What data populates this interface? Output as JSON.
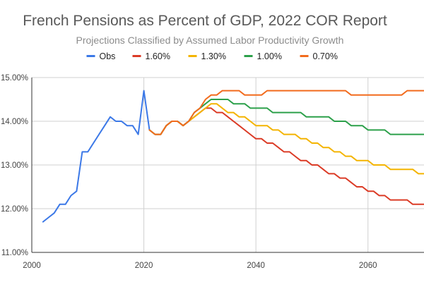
{
  "chart_data": {
    "type": "line",
    "title": "French Pensions as Percent of GDP, 2022 COR Report",
    "subtitle": "Projections Classified by Assumed Labor Productivity Growth",
    "xlabel": "",
    "ylabel": "",
    "xlim": [
      2000,
      2070
    ],
    "ylim": [
      11,
      15
    ],
    "x_ticks": [
      2000,
      2020,
      2040,
      2060
    ],
    "x_tick_labels": [
      "2000",
      "2020",
      "2040",
      "2060"
    ],
    "y_ticks": [
      11,
      12,
      13,
      14,
      15
    ],
    "y_tick_labels": [
      "11.00%",
      "12.00%",
      "13.00%",
      "14.00%",
      "15.00%"
    ],
    "grid": true,
    "legend_position": "top",
    "step_lines": true,
    "series": [
      {
        "name": "Obs",
        "color": "#3b78e7",
        "points": [
          [
            2002,
            11.7
          ],
          [
            2003,
            11.8
          ],
          [
            2004,
            11.9
          ],
          [
            2005,
            12.1
          ],
          [
            2006,
            12.1
          ],
          [
            2007,
            12.3
          ],
          [
            2008,
            12.4
          ],
          [
            2009,
            13.3
          ],
          [
            2010,
            13.3
          ],
          [
            2011,
            13.5
          ],
          [
            2012,
            13.7
          ],
          [
            2013,
            13.9
          ],
          [
            2014,
            14.1
          ],
          [
            2015,
            14.0
          ],
          [
            2016,
            14.0
          ],
          [
            2017,
            13.9
          ],
          [
            2018,
            13.9
          ],
          [
            2019,
            13.7
          ],
          [
            2020,
            14.7
          ],
          [
            2021,
            13.8
          ]
        ]
      },
      {
        "name": "1.60%",
        "color": "#db3b26",
        "points": [
          [
            2021,
            13.8
          ],
          [
            2022,
            13.7
          ],
          [
            2023,
            13.7
          ],
          [
            2024,
            13.9
          ],
          [
            2025,
            14.0
          ],
          [
            2026,
            14.0
          ],
          [
            2027,
            13.9
          ],
          [
            2028,
            14.0
          ],
          [
            2029,
            14.1
          ],
          [
            2030,
            14.2
          ],
          [
            2031,
            14.3
          ],
          [
            2032,
            14.3
          ],
          [
            2033,
            14.2
          ],
          [
            2034,
            14.2
          ],
          [
            2035,
            14.1
          ],
          [
            2036,
            14.0
          ],
          [
            2037,
            13.9
          ],
          [
            2038,
            13.8
          ],
          [
            2039,
            13.7
          ],
          [
            2040,
            13.6
          ],
          [
            2041,
            13.6
          ],
          [
            2042,
            13.5
          ],
          [
            2043,
            13.5
          ],
          [
            2044,
            13.4
          ],
          [
            2045,
            13.3
          ],
          [
            2046,
            13.3
          ],
          [
            2047,
            13.2
          ],
          [
            2048,
            13.1
          ],
          [
            2049,
            13.1
          ],
          [
            2050,
            13.0
          ],
          [
            2051,
            13.0
          ],
          [
            2052,
            12.9
          ],
          [
            2053,
            12.8
          ],
          [
            2054,
            12.8
          ],
          [
            2055,
            12.7
          ],
          [
            2056,
            12.7
          ],
          [
            2057,
            12.6
          ],
          [
            2058,
            12.5
          ],
          [
            2059,
            12.5
          ],
          [
            2060,
            12.4
          ],
          [
            2061,
            12.4
          ],
          [
            2062,
            12.3
          ],
          [
            2063,
            12.3
          ],
          [
            2064,
            12.2
          ],
          [
            2065,
            12.2
          ],
          [
            2066,
            12.2
          ],
          [
            2067,
            12.2
          ],
          [
            2068,
            12.1
          ],
          [
            2069,
            12.1
          ],
          [
            2070,
            12.1
          ]
        ]
      },
      {
        "name": "1.30%",
        "color": "#f4b400",
        "points": [
          [
            2021,
            13.8
          ],
          [
            2022,
            13.7
          ],
          [
            2023,
            13.7
          ],
          [
            2024,
            13.9
          ],
          [
            2025,
            14.0
          ],
          [
            2026,
            14.0
          ],
          [
            2027,
            13.9
          ],
          [
            2028,
            14.0
          ],
          [
            2029,
            14.1
          ],
          [
            2030,
            14.2
          ],
          [
            2031,
            14.3
          ],
          [
            2032,
            14.4
          ],
          [
            2033,
            14.4
          ],
          [
            2034,
            14.3
          ],
          [
            2035,
            14.2
          ],
          [
            2036,
            14.2
          ],
          [
            2037,
            14.1
          ],
          [
            2038,
            14.1
          ],
          [
            2039,
            14.0
          ],
          [
            2040,
            13.9
          ],
          [
            2041,
            13.9
          ],
          [
            2042,
            13.9
          ],
          [
            2043,
            13.8
          ],
          [
            2044,
            13.8
          ],
          [
            2045,
            13.7
          ],
          [
            2046,
            13.7
          ],
          [
            2047,
            13.7
          ],
          [
            2048,
            13.6
          ],
          [
            2049,
            13.6
          ],
          [
            2050,
            13.5
          ],
          [
            2051,
            13.5
          ],
          [
            2052,
            13.4
          ],
          [
            2053,
            13.4
          ],
          [
            2054,
            13.3
          ],
          [
            2055,
            13.3
          ],
          [
            2056,
            13.2
          ],
          [
            2057,
            13.2
          ],
          [
            2058,
            13.1
          ],
          [
            2059,
            13.1
          ],
          [
            2060,
            13.1
          ],
          [
            2061,
            13.0
          ],
          [
            2062,
            13.0
          ],
          [
            2063,
            13.0
          ],
          [
            2064,
            12.9
          ],
          [
            2065,
            12.9
          ],
          [
            2066,
            12.9
          ],
          [
            2067,
            12.9
          ],
          [
            2068,
            12.9
          ],
          [
            2069,
            12.8
          ],
          [
            2070,
            12.8
          ]
        ]
      },
      {
        "name": "1.00%",
        "color": "#2ca04a",
        "points": [
          [
            2021,
            13.8
          ],
          [
            2022,
            13.7
          ],
          [
            2023,
            13.7
          ],
          [
            2024,
            13.9
          ],
          [
            2025,
            14.0
          ],
          [
            2026,
            14.0
          ],
          [
            2027,
            13.9
          ],
          [
            2028,
            14.0
          ],
          [
            2029,
            14.2
          ],
          [
            2030,
            14.3
          ],
          [
            2031,
            14.4
          ],
          [
            2032,
            14.5
          ],
          [
            2033,
            14.5
          ],
          [
            2034,
            14.5
          ],
          [
            2035,
            14.5
          ],
          [
            2036,
            14.4
          ],
          [
            2037,
            14.4
          ],
          [
            2038,
            14.4
          ],
          [
            2039,
            14.3
          ],
          [
            2040,
            14.3
          ],
          [
            2041,
            14.3
          ],
          [
            2042,
            14.3
          ],
          [
            2043,
            14.2
          ],
          [
            2044,
            14.2
          ],
          [
            2045,
            14.2
          ],
          [
            2046,
            14.2
          ],
          [
            2047,
            14.2
          ],
          [
            2048,
            14.2
          ],
          [
            2049,
            14.1
          ],
          [
            2050,
            14.1
          ],
          [
            2051,
            14.1
          ],
          [
            2052,
            14.1
          ],
          [
            2053,
            14.1
          ],
          [
            2054,
            14.0
          ],
          [
            2055,
            14.0
          ],
          [
            2056,
            14.0
          ],
          [
            2057,
            13.9
          ],
          [
            2058,
            13.9
          ],
          [
            2059,
            13.9
          ],
          [
            2060,
            13.8
          ],
          [
            2061,
            13.8
          ],
          [
            2062,
            13.8
          ],
          [
            2063,
            13.8
          ],
          [
            2064,
            13.7
          ],
          [
            2065,
            13.7
          ],
          [
            2066,
            13.7
          ],
          [
            2067,
            13.7
          ],
          [
            2068,
            13.7
          ],
          [
            2069,
            13.7
          ],
          [
            2070,
            13.7
          ]
        ]
      },
      {
        "name": "0.70%",
        "color": "#f26b1d",
        "points": [
          [
            2021,
            13.8
          ],
          [
            2022,
            13.7
          ],
          [
            2023,
            13.7
          ],
          [
            2024,
            13.9
          ],
          [
            2025,
            14.0
          ],
          [
            2026,
            14.0
          ],
          [
            2027,
            13.9
          ],
          [
            2028,
            14.0
          ],
          [
            2029,
            14.2
          ],
          [
            2030,
            14.3
          ],
          [
            2031,
            14.5
          ],
          [
            2032,
            14.6
          ],
          [
            2033,
            14.6
          ],
          [
            2034,
            14.7
          ],
          [
            2035,
            14.7
          ],
          [
            2036,
            14.7
          ],
          [
            2037,
            14.7
          ],
          [
            2038,
            14.6
          ],
          [
            2039,
            14.6
          ],
          [
            2040,
            14.6
          ],
          [
            2041,
            14.6
          ],
          [
            2042,
            14.7
          ],
          [
            2043,
            14.7
          ],
          [
            2044,
            14.7
          ],
          [
            2045,
            14.7
          ],
          [
            2046,
            14.7
          ],
          [
            2047,
            14.7
          ],
          [
            2048,
            14.7
          ],
          [
            2049,
            14.7
          ],
          [
            2050,
            14.7
          ],
          [
            2051,
            14.7
          ],
          [
            2052,
            14.7
          ],
          [
            2053,
            14.7
          ],
          [
            2054,
            14.7
          ],
          [
            2055,
            14.7
          ],
          [
            2056,
            14.7
          ],
          [
            2057,
            14.6
          ],
          [
            2058,
            14.6
          ],
          [
            2059,
            14.6
          ],
          [
            2060,
            14.6
          ],
          [
            2061,
            14.6
          ],
          [
            2062,
            14.6
          ],
          [
            2063,
            14.6
          ],
          [
            2064,
            14.6
          ],
          [
            2065,
            14.6
          ],
          [
            2066,
            14.6
          ],
          [
            2067,
            14.7
          ],
          [
            2068,
            14.7
          ],
          [
            2069,
            14.7
          ],
          [
            2070,
            14.7
          ]
        ]
      }
    ]
  }
}
